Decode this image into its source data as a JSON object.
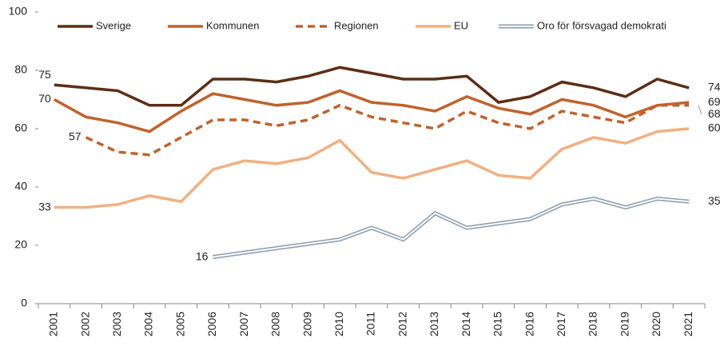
{
  "chart_data": {
    "type": "line",
    "categories": [
      "2001",
      "2002",
      "2003",
      "2004",
      "2005",
      "2006",
      "2007",
      "2008",
      "2009",
      "2010",
      "2011",
      "2012",
      "2013",
      "2014",
      "2015",
      "2016",
      "2017",
      "2018",
      "2019",
      "2020",
      "2021"
    ],
    "series": [
      {
        "name": "Sverige",
        "color": "#5c2e14",
        "style": "solid",
        "values": [
          75,
          74,
          73,
          68,
          68,
          77,
          77,
          76,
          78,
          81,
          79,
          77,
          77,
          78,
          69,
          71,
          76,
          74,
          71,
          77,
          74
        ]
      },
      {
        "name": "Kommunen",
        "color": "#c0622b",
        "style": "solid",
        "values": [
          70,
          64,
          62,
          59,
          66,
          72,
          70,
          68,
          69,
          73,
          69,
          68,
          66,
          71,
          67,
          65,
          70,
          68,
          64,
          68,
          69
        ]
      },
      {
        "name": "Regionen",
        "color": "#c0622b",
        "style": "dashed",
        "values": [
          null,
          57,
          52,
          51,
          57,
          63,
          63,
          61,
          63,
          68,
          64,
          62,
          60,
          66,
          62,
          60,
          66,
          64,
          62,
          68,
          68
        ]
      },
      {
        "name": "EU",
        "color": "#f2b080",
        "style": "solid",
        "values": [
          33,
          33,
          34,
          37,
          35,
          46,
          49,
          48,
          50,
          56,
          45,
          43,
          46,
          49,
          44,
          43,
          53,
          57,
          55,
          59,
          60
        ]
      },
      {
        "name": "Oro för försvagad demokrati",
        "color": "#8a9bb0",
        "style": "double",
        "values": [
          null,
          null,
          null,
          null,
          null,
          16,
          17.5,
          19,
          20.5,
          22,
          26,
          22,
          31,
          26,
          27.5,
          29,
          34,
          36,
          33,
          36,
          35
        ]
      }
    ],
    "ylim": [
      0,
      100
    ],
    "yticks": [
      0,
      20,
      40,
      60,
      80,
      100
    ],
    "label_first_last": true,
    "legend": "top"
  }
}
